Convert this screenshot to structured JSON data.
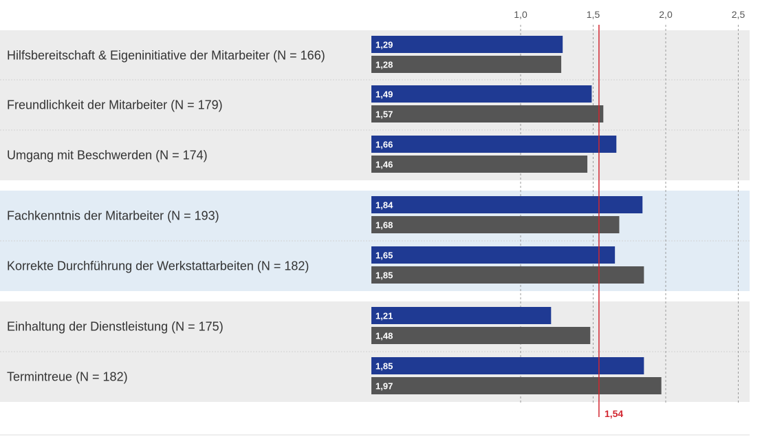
{
  "chart_data": {
    "type": "bar",
    "orientation": "horizontal",
    "categories": [
      "Hilfsbereitschaft & Eigeninitiative der Mitarbeiter (N = 166)",
      "Freundlichkeit der Mitarbeiter (N = 179)",
      "Umgang mit Beschwerden (N = 174)",
      "Fachkenntnis der Mitarbeiter (N = 193)",
      "Korrekte Durchführung der Werkstattarbeiten (N = 182)",
      "Einhaltung der Dienstleistung (N = 175)",
      "Termintreue (N = 182)"
    ],
    "groups": [
      {
        "category_indices": [
          0,
          1,
          2
        ],
        "background": "#ececec"
      },
      {
        "category_indices": [
          3,
          4
        ],
        "background": "#e2ecf5"
      },
      {
        "category_indices": [
          5,
          6
        ],
        "background": "#ececec"
      }
    ],
    "series": [
      {
        "color": "#1f3a93",
        "values": [
          1.29,
          1.49,
          1.66,
          1.84,
          1.65,
          1.21,
          1.85
        ],
        "labels": [
          "1,29",
          "1,49",
          "1,66",
          "1,84",
          "1,65",
          "1,21",
          "1,85"
        ]
      },
      {
        "color": "#555555",
        "values": [
          1.28,
          1.57,
          1.46,
          1.68,
          1.85,
          1.48,
          1.97
        ],
        "labels": [
          "1,28",
          "1,57",
          "1,46",
          "1,68",
          "1,85",
          "1,48",
          "1,97"
        ]
      }
    ],
    "xlim": [
      0,
      2.5
    ],
    "xticks": [
      1.0,
      1.5,
      2.0,
      2.5
    ],
    "xtick_labels": [
      "1,0",
      "1,5",
      "2,0",
      "2,5"
    ],
    "grid": "dotted vertical at ticks",
    "reference_line": {
      "value": 1.54,
      "label": "1,54",
      "color": "#d22630"
    },
    "title": "",
    "xlabel": "",
    "ylabel": ""
  }
}
